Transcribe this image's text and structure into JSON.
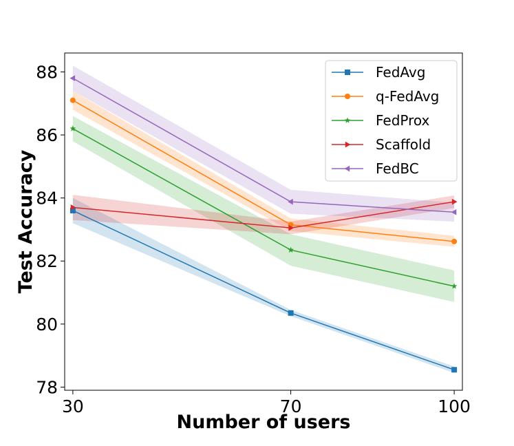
{
  "chart_data": {
    "type": "line",
    "xlabel": "Number of users",
    "ylabel": "Test Accuracy",
    "x": [
      30,
      70,
      100
    ],
    "x_tick_labels": [
      "30",
      "70",
      "100"
    ],
    "xlim": [
      28.5,
      101.5
    ],
    "ylim": [
      77.9,
      88.6
    ],
    "y_ticks": [
      78,
      80,
      82,
      84,
      86,
      88
    ],
    "y_tick_labels": [
      "78",
      "80",
      "82",
      "84",
      "86",
      "88"
    ],
    "grid": false,
    "legend_position": "top-right",
    "series": [
      {
        "name": "FedAvg",
        "values": [
          83.6,
          80.35,
          78.55
        ],
        "band_lower": [
          83.2,
          80.25,
          78.45
        ],
        "band_upper": [
          84.0,
          80.45,
          78.65
        ],
        "color": "#1f77b4",
        "marker": "square"
      },
      {
        "name": "q-FedAvg",
        "values": [
          87.1,
          83.15,
          82.62
        ],
        "band_lower": [
          86.8,
          82.95,
          82.45
        ],
        "band_upper": [
          87.4,
          83.35,
          82.8
        ],
        "color": "#ff7f0e",
        "marker": "circle"
      },
      {
        "name": "FedProx",
        "values": [
          86.2,
          82.35,
          81.2
        ],
        "band_lower": [
          85.8,
          81.85,
          80.7
        ],
        "band_upper": [
          86.6,
          82.85,
          81.7
        ],
        "color": "#2ca02c",
        "marker": "star"
      },
      {
        "name": "Scaffold",
        "values": [
          83.7,
          83.05,
          83.88
        ],
        "band_lower": [
          83.3,
          82.85,
          83.68
        ],
        "band_upper": [
          84.1,
          83.25,
          84.08
        ],
        "color": "#d62728",
        "marker": "triangle-right"
      },
      {
        "name": "FedBC",
        "values": [
          87.8,
          83.88,
          83.55
        ],
        "band_lower": [
          87.4,
          83.5,
          83.25
        ],
        "band_upper": [
          88.2,
          84.26,
          83.85
        ],
        "color": "#9467bd",
        "marker": "triangle-left"
      }
    ]
  }
}
